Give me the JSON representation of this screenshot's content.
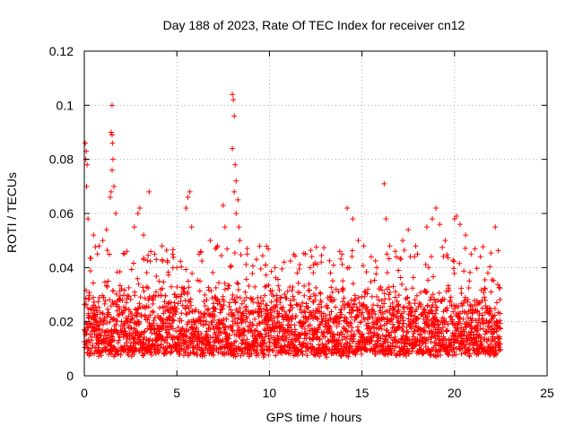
{
  "chart_data": {
    "type": "scatter",
    "title": "Day 188 of 2023, Rate Of TEC Index for receiver cn12",
    "xlabel": "GPS time / hours",
    "ylabel": "ROTI / TECUs",
    "xlim": [
      0,
      25
    ],
    "ylim": [
      0,
      0.12
    ],
    "x_ticks": [
      0,
      5,
      10,
      15,
      20,
      25
    ],
    "x_tick_labels": [
      "0",
      "5",
      "10",
      "15",
      "20",
      "25"
    ],
    "y_ticks": [
      0,
      0.02,
      0.04,
      0.06,
      0.08,
      0.1,
      0.12
    ],
    "y_tick_labels": [
      "0",
      "0.02",
      "0.04",
      "0.06",
      "0.08",
      "0.1",
      "0.12"
    ],
    "grid": true,
    "legend": "none",
    "marker": "+",
    "color": "#ff0000",
    "series": [
      {
        "points": [
          [
            0.05,
            0.086
          ],
          [
            0.08,
            0.08
          ],
          [
            0.1,
            0.083
          ],
          [
            0.12,
            0.07
          ],
          [
            0.15,
            0.078
          ],
          [
            0.2,
            0.058
          ],
          [
            1.5,
            0.1
          ],
          [
            1.45,
            0.09
          ],
          [
            1.5,
            0.089
          ],
          [
            1.52,
            0.086
          ],
          [
            1.55,
            0.08
          ],
          [
            1.5,
            0.076
          ],
          [
            1.45,
            0.068
          ],
          [
            1.4,
            0.066
          ],
          [
            0.5,
            0.052
          ],
          [
            0.8,
            0.048
          ],
          [
            1.0,
            0.05
          ],
          [
            1.2,
            0.054
          ],
          [
            1.6,
            0.07
          ],
          [
            1.7,
            0.06
          ],
          [
            2.3,
            0.046
          ],
          [
            2.7,
            0.055
          ],
          [
            2.9,
            0.06
          ],
          [
            3.0,
            0.062
          ],
          [
            3.5,
            0.068
          ],
          [
            3.2,
            0.052
          ],
          [
            3.8,
            0.045
          ],
          [
            4.2,
            0.048
          ],
          [
            4.5,
            0.042
          ],
          [
            5.0,
            0.04
          ],
          [
            5.5,
            0.062
          ],
          [
            5.6,
            0.066
          ],
          [
            5.7,
            0.068
          ],
          [
            5.8,
            0.055
          ],
          [
            6.2,
            0.045
          ],
          [
            6.8,
            0.05
          ],
          [
            7.2,
            0.048
          ],
          [
            7.5,
            0.063
          ],
          [
            7.6,
            0.055
          ],
          [
            8.0,
            0.104
          ],
          [
            8.05,
            0.102
          ],
          [
            8.1,
            0.096
          ],
          [
            8.0,
            0.084
          ],
          [
            8.15,
            0.078
          ],
          [
            8.2,
            0.072
          ],
          [
            8.1,
            0.068
          ],
          [
            8.3,
            0.065
          ],
          [
            8.2,
            0.06
          ],
          [
            8.35,
            0.055
          ],
          [
            8.4,
            0.05
          ],
          [
            8.8,
            0.045
          ],
          [
            9.3,
            0.043
          ],
          [
            9.8,
            0.041
          ],
          [
            10.3,
            0.04
          ],
          [
            10.8,
            0.042
          ],
          [
            11.5,
            0.038
          ],
          [
            12.2,
            0.04
          ],
          [
            12.8,
            0.042
          ],
          [
            13.3,
            0.038
          ],
          [
            13.8,
            0.046
          ],
          [
            14.2,
            0.062
          ],
          [
            14.5,
            0.058
          ],
          [
            14.8,
            0.05
          ],
          [
            15.1,
            0.048
          ],
          [
            15.5,
            0.044
          ],
          [
            15.8,
            0.04
          ],
          [
            16.2,
            0.071
          ],
          [
            16.3,
            0.058
          ],
          [
            16.5,
            0.048
          ],
          [
            16.8,
            0.046
          ],
          [
            17.2,
            0.05
          ],
          [
            17.5,
            0.054
          ],
          [
            18.0,
            0.045
          ],
          [
            18.5,
            0.055
          ],
          [
            18.8,
            0.058
          ],
          [
            19.0,
            0.062
          ],
          [
            19.2,
            0.056
          ],
          [
            19.5,
            0.05
          ],
          [
            20.0,
            0.058
          ],
          [
            20.1,
            0.059
          ],
          [
            20.3,
            0.056
          ],
          [
            20.6,
            0.052
          ],
          [
            20.9,
            0.045
          ],
          [
            21.4,
            0.044
          ],
          [
            21.8,
            0.038
          ],
          [
            22.2,
            0.055
          ],
          [
            14.3,
            0.04
          ],
          [
            17.9,
            0.048
          ]
        ],
        "bulk_x_range": [
          0,
          22.5
        ],
        "bulk_y_range": [
          0.003,
          0.035
        ]
      }
    ]
  }
}
